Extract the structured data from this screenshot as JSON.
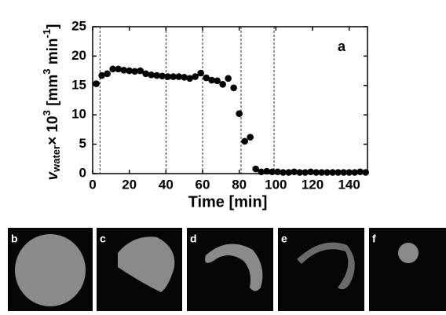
{
  "chart_data": {
    "type": "scatter",
    "panel_label": "a",
    "xlabel": "Time [min]",
    "ylabel_parts": [
      "v",
      "water",
      "× 10",
      "3",
      " [mm",
      "3",
      " min",
      "-1",
      "]"
    ],
    "x": [
      2,
      5,
      8,
      11,
      14,
      17,
      20,
      23,
      26,
      29,
      32,
      35,
      38,
      41,
      44,
      47,
      50,
      53,
      56,
      59,
      62,
      65,
      68,
      71,
      74,
      77,
      80,
      83,
      86,
      89,
      92,
      95,
      98,
      101,
      104,
      107,
      110,
      113,
      116,
      119,
      122,
      125,
      128,
      131,
      134,
      137,
      140,
      143,
      146,
      149
    ],
    "series": [
      {
        "color": "#000000",
        "values": [
          15.3,
          16.7,
          17.0,
          17.8,
          17.8,
          17.6,
          17.5,
          17.4,
          17.5,
          17.0,
          16.8,
          16.7,
          16.6,
          16.5,
          16.5,
          16.5,
          16.4,
          16.2,
          16.5,
          17.1,
          16.3,
          15.9,
          15.8,
          15.2,
          16.2,
          14.6,
          10.2,
          5.5,
          6.2,
          0.8,
          0.3,
          0.4,
          0.3,
          0.3,
          0.2,
          0.2,
          0.3,
          0.2,
          0.2,
          0.3,
          0.2,
          0.2,
          0.2,
          0.2,
          0.2,
          0.2,
          0.2,
          0.2,
          0.3,
          0.2
        ]
      }
    ],
    "xlim": [
      0,
      150
    ],
    "xticks": [
      0,
      20,
      40,
      60,
      80,
      100,
      120,
      140
    ],
    "ylim": [
      0,
      25
    ],
    "yticks": [
      0,
      5,
      10,
      15,
      20,
      25
    ],
    "vlines": [
      4,
      40,
      60,
      81,
      99
    ]
  },
  "panels": [
    "b",
    "c",
    "d",
    "e",
    "f"
  ]
}
